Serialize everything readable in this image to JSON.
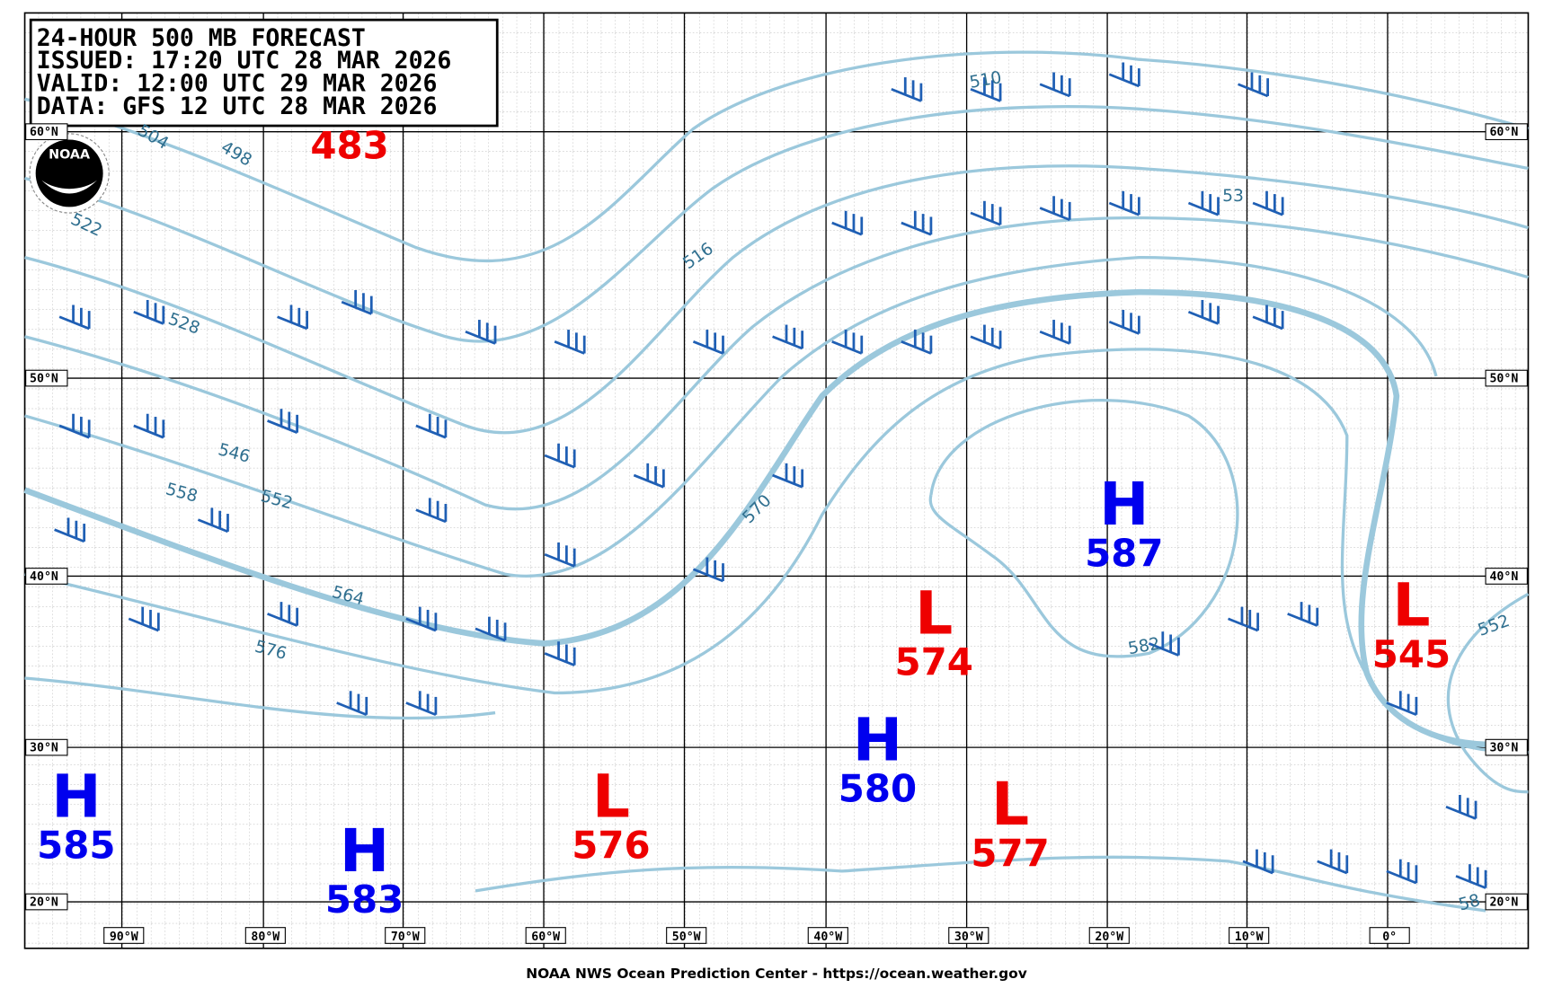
{
  "header": {
    "lines": [
      "24-HOUR 500 MB FORECAST",
      "ISSUED: 17:20 UTC 28 MAR 2026",
      "VALID:  12:00 UTC 29 MAR 2026",
      "DATA:  GFS 12 UTC 28 MAR 2026"
    ]
  },
  "logo": "NOAA",
  "lat_labels": [
    "60°N",
    "50°N",
    "40°N",
    "30°N",
    "20°N"
  ],
  "lon_labels": [
    "90°W",
    "80°W",
    "70°W",
    "60°W",
    "50°W",
    "40°W",
    "30°W",
    "20°W",
    "10°W",
    "0°"
  ],
  "centers": [
    {
      "value": 483
    },
    {
      "letter": "H",
      "value": 587
    },
    {
      "letter": "L",
      "value": 574
    },
    {
      "letter": "L",
      "value": 545
    },
    {
      "letter": "H",
      "value": 580
    },
    {
      "letter": "L",
      "value": 576
    },
    {
      "letter": "L",
      "value": 577
    },
    {
      "letter": "H",
      "value": 585
    },
    {
      "letter": "H",
      "value": 583
    }
  ],
  "contour_labels": [
    "504",
    "498",
    "522",
    "528",
    "546",
    "558",
    "552",
    "564",
    "576",
    "516",
    "570",
    "510",
    "53",
    "582",
    "552",
    "58"
  ],
  "footer": "NOAA NWS Ocean Prediction Center - https://ocean.weather.gov"
}
